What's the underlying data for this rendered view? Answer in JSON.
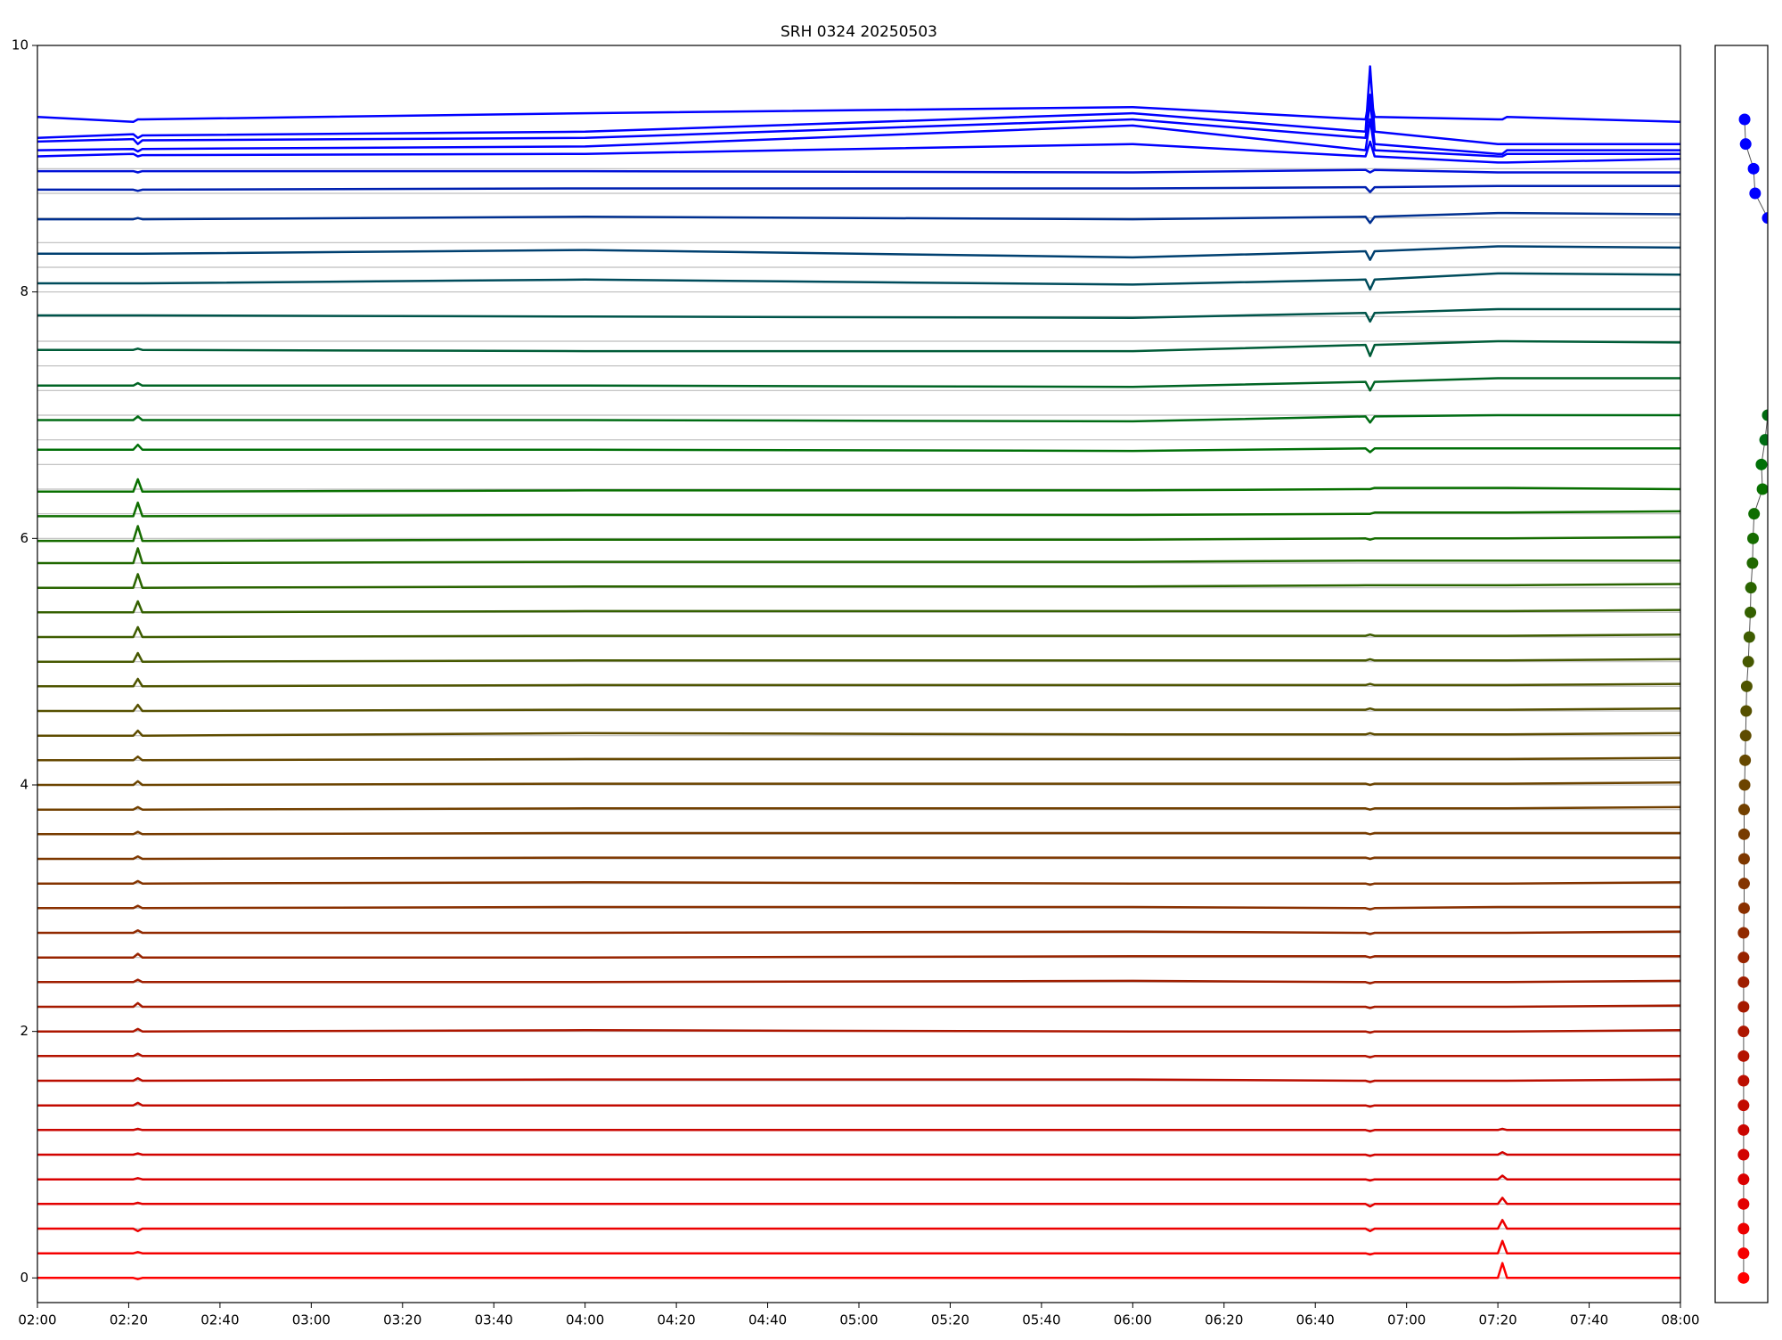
{
  "chart_data": [
    {
      "type": "line",
      "title": "SRH 0324 20250503",
      "x": [
        120,
        141,
        142,
        143,
        240,
        360,
        411,
        412,
        413,
        440,
        441,
        442,
        480
      ],
      "xlim": [
        120,
        480
      ],
      "xticks": [
        {
          "value": 120,
          "label": "02:00"
        },
        {
          "value": 140,
          "label": "02:20"
        },
        {
          "value": 160,
          "label": "02:40"
        },
        {
          "value": 180,
          "label": "03:00"
        },
        {
          "value": 200,
          "label": "03:20"
        },
        {
          "value": 220,
          "label": "03:40"
        },
        {
          "value": 240,
          "label": "04:00"
        },
        {
          "value": 260,
          "label": "04:20"
        },
        {
          "value": 280,
          "label": "04:40"
        },
        {
          "value": 300,
          "label": "05:00"
        },
        {
          "value": 320,
          "label": "05:20"
        },
        {
          "value": 340,
          "label": "05:40"
        },
        {
          "value": 360,
          "label": "06:00"
        },
        {
          "value": 380,
          "label": "06:20"
        },
        {
          "value": 400,
          "label": "06:40"
        },
        {
          "value": 420,
          "label": "07:00"
        },
        {
          "value": 440,
          "label": "07:20"
        },
        {
          "value": 460,
          "label": "07:40"
        },
        {
          "value": 480,
          "label": "08:00"
        }
      ],
      "ylim": [
        -0.2,
        10
      ],
      "yticks": [
        0,
        2,
        4,
        6,
        8,
        10
      ],
      "baselines": [
        0,
        0.2,
        0.4,
        0.6,
        0.8,
        1,
        1.2,
        1.4,
        1.6,
        1.8,
        2,
        2.2,
        2.4,
        2.6,
        2.8,
        3,
        3.2,
        3.4,
        3.6,
        3.8,
        4,
        4.2,
        4.4,
        4.6,
        4.8,
        5,
        5.2,
        5.4,
        5.6,
        5.8,
        6,
        6.2,
        6.4,
        6.6,
        6.8,
        7,
        7.2,
        7.4,
        7.6,
        7.8,
        8,
        8.2,
        8.4,
        8.6,
        8.8,
        9
      ],
      "baseline_color": "#bdbdbd",
      "series": [
        {
          "color": "#ff0000",
          "values": [
            0,
            0,
            -0.01,
            0,
            0,
            0,
            0,
            0,
            0,
            0,
            0.12,
            0,
            0
          ]
        },
        {
          "color": "#f50000",
          "values": [
            0.2,
            0.2,
            0.21,
            0.2,
            0.2,
            0.2,
            0.2,
            0.19,
            0.2,
            0.2,
            0.3,
            0.2,
            0.2
          ]
        },
        {
          "color": "#ec0000",
          "values": [
            0.4,
            0.4,
            0.38,
            0.4,
            0.4,
            0.4,
            0.4,
            0.38,
            0.4,
            0.4,
            0.47,
            0.4,
            0.4
          ]
        },
        {
          "color": "#e30000",
          "values": [
            0.6,
            0.6,
            0.61,
            0.6,
            0.6,
            0.6,
            0.6,
            0.58,
            0.6,
            0.6,
            0.65,
            0.6,
            0.6
          ]
        },
        {
          "color": "#da0000",
          "values": [
            0.8,
            0.8,
            0.81,
            0.8,
            0.8,
            0.8,
            0.8,
            0.79,
            0.8,
            0.8,
            0.83,
            0.8,
            0.8
          ]
        },
        {
          "color": "#d20200",
          "values": [
            1,
            1,
            1.01,
            1,
            1,
            1,
            1,
            0.99,
            1,
            1,
            1.02,
            1,
            1
          ]
        },
        {
          "color": "#ca0600",
          "values": [
            1.2,
            1.2,
            1.21,
            1.2,
            1.2,
            1.2,
            1.2,
            1.19,
            1.2,
            1.2,
            1.21,
            1.2,
            1.2
          ]
        },
        {
          "color": "#c20a00",
          "values": [
            1.4,
            1.4,
            1.42,
            1.4,
            1.4,
            1.4,
            1.4,
            1.39,
            1.4,
            1.4,
            1.4,
            1.4,
            1.4
          ]
        },
        {
          "color": "#bb0e00",
          "values": [
            1.6,
            1.6,
            1.62,
            1.6,
            1.61,
            1.61,
            1.6,
            1.59,
            1.6,
            1.6,
            1.6,
            1.6,
            1.61
          ]
        },
        {
          "color": "#b41200",
          "values": [
            1.8,
            1.8,
            1.82,
            1.8,
            1.8,
            1.8,
            1.8,
            1.79,
            1.8,
            1.8,
            1.8,
            1.8,
            1.8
          ]
        },
        {
          "color": "#ad1600",
          "values": [
            2,
            2,
            2.02,
            2,
            2.01,
            2,
            2,
            1.99,
            2,
            2,
            2,
            2,
            2.01
          ]
        },
        {
          "color": "#a61a00",
          "values": [
            2.2,
            2.2,
            2.23,
            2.2,
            2.2,
            2.2,
            2.2,
            2.19,
            2.2,
            2.2,
            2.2,
            2.2,
            2.21
          ]
        },
        {
          "color": "#9f1e00",
          "values": [
            2.4,
            2.4,
            2.42,
            2.4,
            2.4,
            2.41,
            2.4,
            2.39,
            2.4,
            2.4,
            2.4,
            2.4,
            2.41
          ]
        },
        {
          "color": "#982400",
          "values": [
            2.6,
            2.6,
            2.63,
            2.6,
            2.6,
            2.61,
            2.61,
            2.6,
            2.61,
            2.61,
            2.61,
            2.61,
            2.61
          ]
        },
        {
          "color": "#912a00",
          "values": [
            2.8,
            2.8,
            2.82,
            2.8,
            2.8,
            2.81,
            2.8,
            2.79,
            2.8,
            2.8,
            2.8,
            2.8,
            2.81
          ]
        },
        {
          "color": "#8a3000",
          "values": [
            3,
            3,
            3.02,
            3,
            3.01,
            3.01,
            3,
            2.99,
            3,
            3.01,
            3.01,
            3.01,
            3.01
          ]
        },
        {
          "color": "#843400",
          "values": [
            3.2,
            3.2,
            3.22,
            3.2,
            3.21,
            3.2,
            3.2,
            3.19,
            3.2,
            3.2,
            3.2,
            3.2,
            3.21
          ]
        },
        {
          "color": "#7e3800",
          "values": [
            3.4,
            3.4,
            3.42,
            3.4,
            3.41,
            3.41,
            3.41,
            3.4,
            3.41,
            3.41,
            3.41,
            3.41,
            3.41
          ]
        },
        {
          "color": "#783c00",
          "values": [
            3.6,
            3.6,
            3.62,
            3.6,
            3.61,
            3.61,
            3.61,
            3.6,
            3.61,
            3.61,
            3.61,
            3.61,
            3.61
          ]
        },
        {
          "color": "#724000",
          "values": [
            3.8,
            3.8,
            3.82,
            3.8,
            3.81,
            3.81,
            3.81,
            3.8,
            3.81,
            3.81,
            3.81,
            3.81,
            3.82
          ]
        },
        {
          "color": "#6c4400",
          "values": [
            4,
            4,
            4.03,
            4,
            4.01,
            4.01,
            4.01,
            4,
            4.01,
            4.01,
            4.01,
            4.01,
            4.02
          ]
        },
        {
          "color": "#664800",
          "values": [
            4.2,
            4.2,
            4.23,
            4.2,
            4.21,
            4.21,
            4.21,
            4.21,
            4.21,
            4.21,
            4.21,
            4.21,
            4.22
          ]
        },
        {
          "color": "#5e4c00",
          "values": [
            4.4,
            4.4,
            4.44,
            4.4,
            4.42,
            4.41,
            4.41,
            4.42,
            4.41,
            4.41,
            4.41,
            4.41,
            4.42
          ]
        },
        {
          "color": "#565000",
          "values": [
            4.6,
            4.6,
            4.65,
            4.6,
            4.61,
            4.61,
            4.61,
            4.62,
            4.61,
            4.61,
            4.61,
            4.61,
            4.62
          ]
        },
        {
          "color": "#4e5400",
          "values": [
            4.8,
            4.8,
            4.86,
            4.8,
            4.81,
            4.81,
            4.81,
            4.82,
            4.81,
            4.81,
            4.81,
            4.81,
            4.82
          ]
        },
        {
          "color": "#465800",
          "values": [
            5,
            5,
            5.07,
            5,
            5.01,
            5.01,
            5.01,
            5.02,
            5.01,
            5.01,
            5.01,
            5.01,
            5.02
          ]
        },
        {
          "color": "#3e5c00",
          "values": [
            5.2,
            5.2,
            5.28,
            5.2,
            5.21,
            5.21,
            5.21,
            5.22,
            5.21,
            5.21,
            5.21,
            5.21,
            5.22
          ]
        },
        {
          "color": "#346000",
          "values": [
            5.4,
            5.4,
            5.49,
            5.4,
            5.41,
            5.41,
            5.41,
            5.41,
            5.41,
            5.41,
            5.41,
            5.41,
            5.42
          ]
        },
        {
          "color": "#2a6400",
          "values": [
            5.6,
            5.6,
            5.71,
            5.6,
            5.61,
            5.61,
            5.62,
            5.62,
            5.62,
            5.62,
            5.62,
            5.62,
            5.63
          ]
        },
        {
          "color": "#206800",
          "values": [
            5.8,
            5.8,
            5.92,
            5.8,
            5.81,
            5.81,
            5.82,
            5.82,
            5.82,
            5.82,
            5.82,
            5.82,
            5.82
          ]
        },
        {
          "color": "#166c00",
          "values": [
            5.98,
            5.98,
            6.1,
            5.98,
            5.99,
            5.99,
            6,
            5.99,
            6,
            6,
            6,
            6,
            6.01
          ]
        },
        {
          "color": "#0e6e00",
          "values": [
            6.18,
            6.18,
            6.29,
            6.18,
            6.19,
            6.19,
            6.2,
            6.2,
            6.21,
            6.21,
            6.21,
            6.21,
            6.22
          ]
        },
        {
          "color": "#087000",
          "values": [
            6.38,
            6.38,
            6.48,
            6.38,
            6.39,
            6.39,
            6.4,
            6.4,
            6.41,
            6.41,
            6.41,
            6.41,
            6.4
          ]
        },
        {
          "color": "#007008",
          "values": [
            6.72,
            6.72,
            6.76,
            6.72,
            6.72,
            6.71,
            6.73,
            6.7,
            6.73,
            6.73,
            6.73,
            6.73,
            6.73
          ]
        },
        {
          "color": "#006c14",
          "values": [
            6.96,
            6.96,
            6.99,
            6.96,
            6.96,
            6.95,
            6.99,
            6.94,
            6.99,
            7,
            7,
            7,
            7
          ]
        },
        {
          "color": "#006424",
          "values": [
            7.24,
            7.24,
            7.26,
            7.24,
            7.24,
            7.23,
            7.27,
            7.2,
            7.27,
            7.3,
            7.3,
            7.3,
            7.3
          ]
        },
        {
          "color": "#005c38",
          "values": [
            7.53,
            7.53,
            7.54,
            7.53,
            7.52,
            7.52,
            7.57,
            7.48,
            7.57,
            7.6,
            7.6,
            7.6,
            7.59
          ]
        },
        {
          "color": "#00544a",
          "values": [
            7.81,
            7.81,
            7.81,
            7.81,
            7.8,
            7.79,
            7.83,
            7.76,
            7.83,
            7.86,
            7.86,
            7.86,
            7.86
          ]
        },
        {
          "color": "#004c5c",
          "values": [
            8.07,
            8.07,
            8.07,
            8.07,
            8.1,
            8.06,
            8.1,
            8.02,
            8.1,
            8.15,
            8.15,
            8.15,
            8.14
          ]
        },
        {
          "color": "#004070",
          "values": [
            8.31,
            8.31,
            8.31,
            8.31,
            8.34,
            8.28,
            8.33,
            8.26,
            8.33,
            8.37,
            8.37,
            8.37,
            8.36
          ]
        },
        {
          "color": "#003090",
          "values": [
            8.59,
            8.59,
            8.6,
            8.59,
            8.61,
            8.59,
            8.61,
            8.56,
            8.61,
            8.64,
            8.64,
            8.64,
            8.63
          ]
        },
        {
          "color": "#0020b0",
          "values": [
            8.83,
            8.83,
            8.82,
            8.83,
            8.84,
            8.84,
            8.85,
            8.81,
            8.85,
            8.86,
            8.86,
            8.86,
            8.86
          ]
        },
        {
          "color": "#0010d8",
          "values": [
            8.98,
            8.98,
            8.97,
            8.98,
            8.98,
            8.97,
            8.99,
            8.97,
            8.99,
            8.97,
            8.97,
            8.97,
            8.97
          ]
        },
        {
          "color": "#0000ff",
          "values": [
            9.1,
            9.12,
            9.1,
            9.11,
            9.12,
            9.2,
            9.1,
            9.22,
            9.1,
            9.05,
            9.05,
            9.05,
            9.08
          ]
        },
        {
          "color": "#0000ff",
          "values": [
            9.15,
            9.16,
            9.14,
            9.16,
            9.18,
            9.35,
            9.15,
            9.4,
            9.15,
            9.1,
            9.1,
            9.12,
            9.12
          ]
        },
        {
          "color": "#0000ff",
          "values": [
            9.22,
            9.24,
            9.2,
            9.23,
            9.25,
            9.4,
            9.25,
            9.55,
            9.2,
            9.12,
            9.12,
            9.15,
            9.15
          ]
        },
        {
          "color": "#0000ff",
          "values": [
            9.25,
            9.28,
            9.25,
            9.27,
            9.3,
            9.45,
            9.3,
            9.83,
            9.3,
            9.2,
            9.2,
            9.2,
            9.2
          ]
        },
        {
          "color": "#0000ff",
          "values": [
            9.42,
            9.38,
            9.4,
            9.4,
            9.45,
            9.5,
            9.4,
            9.6,
            9.42,
            9.4,
            9.4,
            9.42,
            9.38
          ]
        }
      ]
    },
    {
      "type": "scatter",
      "xlim": [
        -1,
        1
      ],
      "ylim": [
        -0.2,
        10
      ],
      "line_color": "#555555",
      "x": [
        0.08,
        0.08,
        0.08,
        0.08,
        0.08,
        0.08,
        0.08,
        0.08,
        0.08,
        0.08,
        0.08,
        0.08,
        0.08,
        0.08,
        0.08,
        0.1,
        0.1,
        0.1,
        0.1,
        0.1,
        0.12,
        0.14,
        0.16,
        0.18,
        0.2,
        0.26,
        0.3,
        0.34,
        0.36,
        0.42,
        0.44,
        0.48,
        0.8,
        0.76,
        0.9,
        1,
        null,
        1,
        0.52,
        0.46,
        0.16,
        0.12
      ],
      "y": [
        0,
        0.2,
        0.4,
        0.6,
        0.8,
        1,
        1.2,
        1.4,
        1.6,
        1.8,
        2,
        2.2,
        2.4,
        2.6,
        2.8,
        3,
        3.2,
        3.4,
        3.6,
        3.8,
        4,
        4.2,
        4.4,
        4.6,
        4.8,
        5,
        5.2,
        5.4,
        5.6,
        5.8,
        6,
        6.2,
        6.4,
        6.6,
        6.8,
        7,
        null,
        8.6,
        8.8,
        9,
        9.2,
        9.4
      ],
      "colors": [
        "#ff0000",
        "#f50000",
        "#ec0000",
        "#e30000",
        "#da0000",
        "#d20200",
        "#ca0600",
        "#c20a00",
        "#bb0e00",
        "#b41200",
        "#ad1600",
        "#a61a00",
        "#9f1e00",
        "#982400",
        "#912a00",
        "#8a3000",
        "#843400",
        "#7e3800",
        "#783c00",
        "#724000",
        "#6c4400",
        "#664800",
        "#5e4c00",
        "#565000",
        "#4e5400",
        "#465800",
        "#3e5c00",
        "#346000",
        "#2a6400",
        "#206800",
        "#166c00",
        "#0e6e00",
        "#087000",
        "#007008",
        "#006c14",
        "#006a10",
        null,
        "#0000ff",
        "#0000ff",
        "#0000ff",
        "#0000ff",
        "#0000ff"
      ]
    }
  ]
}
